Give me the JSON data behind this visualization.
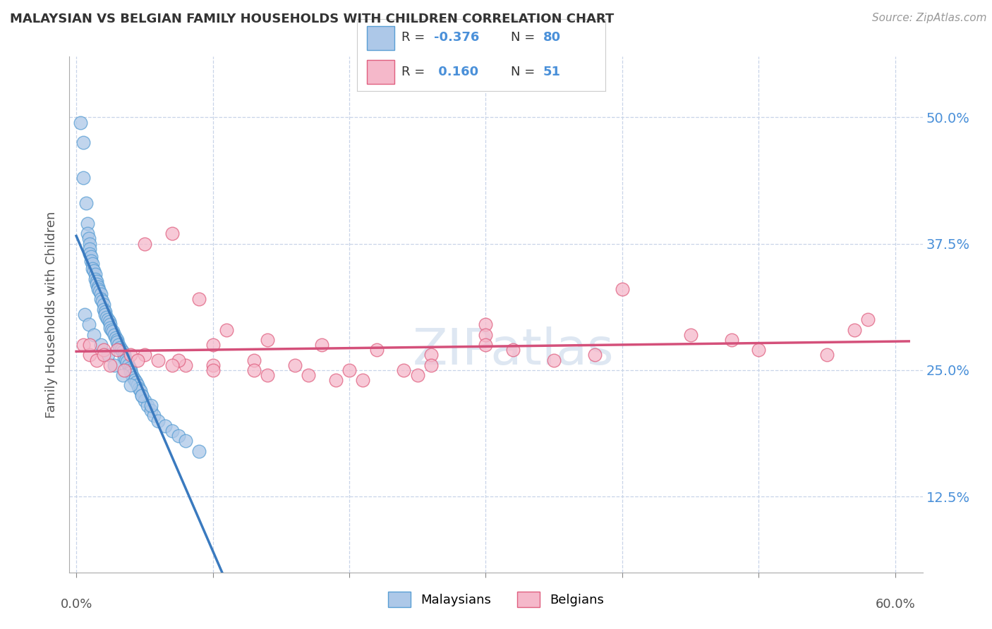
{
  "title": "MALAYSIAN VS BELGIAN FAMILY HOUSEHOLDS WITH CHILDREN CORRELATION CHART",
  "source": "Source: ZipAtlas.com",
  "ylabel": "Family Households with Children",
  "legend_label1": "Malaysians",
  "legend_label2": "Belgians",
  "R_malaysian": -0.376,
  "N_malaysian": 80,
  "R_belgian": 0.16,
  "N_belgian": 51,
  "color_malaysian_fill": "#adc8e8",
  "color_malaysian_edge": "#5a9fd4",
  "color_belgian_fill": "#f5b8ca",
  "color_belgian_edge": "#e06080",
  "color_line_malaysian": "#3a7abf",
  "color_line_belgian": "#d4507a",
  "color_line_ext": "#b8cce4",
  "background_color": "#ffffff",
  "grid_color": "#c8d4e8",
  "ytick_vals": [
    12.5,
    25.0,
    37.5,
    50.0
  ],
  "ylim": [
    5,
    56
  ],
  "xlim": [
    -0.5,
    62
  ],
  "watermark_color": "#c8d8ea",
  "watermark_alpha": 0.6,
  "malaysian_x": [
    0.3,
    0.5,
    0.5,
    0.7,
    0.8,
    0.8,
    0.9,
    1.0,
    1.0,
    1.0,
    1.1,
    1.1,
    1.2,
    1.2,
    1.3,
    1.4,
    1.4,
    1.5,
    1.5,
    1.6,
    1.6,
    1.7,
    1.8,
    1.8,
    1.9,
    2.0,
    2.0,
    2.1,
    2.1,
    2.2,
    2.3,
    2.4,
    2.5,
    2.5,
    2.6,
    2.7,
    2.8,
    2.9,
    3.0,
    3.0,
    3.1,
    3.2,
    3.3,
    3.4,
    3.5,
    3.5,
    3.6,
    3.7,
    3.8,
    3.9,
    4.0,
    4.0,
    4.1,
    4.2,
    4.3,
    4.4,
    4.5,
    4.6,
    4.7,
    4.8,
    5.0,
    5.2,
    5.5,
    5.7,
    6.0,
    6.5,
    7.0,
    7.5,
    8.0,
    9.0,
    0.6,
    0.9,
    1.3,
    1.8,
    2.3,
    2.8,
    3.4,
    4.0,
    4.8,
    5.5
  ],
  "malaysian_y": [
    49.5,
    47.5,
    44.0,
    41.5,
    39.5,
    38.5,
    38.0,
    37.5,
    37.0,
    36.5,
    36.2,
    35.8,
    35.5,
    35.0,
    34.8,
    34.5,
    34.0,
    33.8,
    33.5,
    33.2,
    33.0,
    32.8,
    32.5,
    32.0,
    31.8,
    31.5,
    31.0,
    30.8,
    30.5,
    30.2,
    30.0,
    29.8,
    29.5,
    29.2,
    29.0,
    28.8,
    28.5,
    28.2,
    28.0,
    27.8,
    27.5,
    27.2,
    27.0,
    26.8,
    26.5,
    26.2,
    26.0,
    25.8,
    25.5,
    25.2,
    25.0,
    24.8,
    24.5,
    24.2,
    24.0,
    23.8,
    23.5,
    23.2,
    23.0,
    22.5,
    22.0,
    21.5,
    21.0,
    20.5,
    20.0,
    19.5,
    19.0,
    18.5,
    18.0,
    17.0,
    30.5,
    29.5,
    28.5,
    27.5,
    26.5,
    25.5,
    24.5,
    23.5,
    22.5,
    21.5
  ],
  "belgian_x": [
    0.5,
    1.0,
    1.5,
    2.5,
    3.5,
    5.0,
    7.0,
    9.0,
    11.0,
    14.0,
    18.0,
    22.0,
    26.0,
    30.0,
    35.0,
    40.0,
    45.0,
    50.0,
    55.0,
    58.0,
    2.0,
    4.0,
    6.0,
    8.0,
    10.0,
    13.0,
    16.0,
    20.0,
    25.0,
    30.0,
    1.0,
    3.0,
    5.0,
    7.5,
    10.0,
    13.0,
    17.0,
    21.0,
    26.0,
    32.0,
    2.0,
    4.5,
    7.0,
    10.0,
    14.0,
    19.0,
    24.0,
    30.0,
    38.0,
    48.0,
    57.0
  ],
  "belgian_y": [
    27.5,
    26.5,
    26.0,
    25.5,
    25.0,
    37.5,
    38.5,
    32.0,
    29.0,
    28.0,
    27.5,
    27.0,
    26.5,
    29.5,
    26.0,
    33.0,
    28.5,
    27.0,
    26.5,
    30.0,
    27.0,
    26.5,
    26.0,
    25.5,
    27.5,
    26.0,
    25.5,
    25.0,
    24.5,
    28.5,
    27.5,
    27.0,
    26.5,
    26.0,
    25.5,
    25.0,
    24.5,
    24.0,
    25.5,
    27.0,
    26.5,
    26.0,
    25.5,
    25.0,
    24.5,
    24.0,
    25.0,
    27.5,
    26.5,
    28.0,
    29.0
  ]
}
